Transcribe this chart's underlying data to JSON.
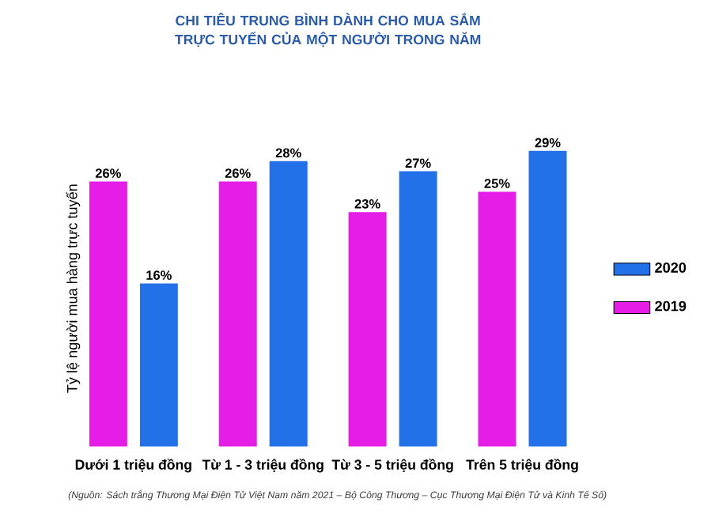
{
  "chart_data": {
    "type": "bar",
    "title": "CHI TIÊU TRUNG BÌNH DÀNH CHO MUA SẮM TRỰC TUYẾN CỦA MỘT NGƯỜI TRONG NĂM",
    "ylabel": "Tỷ lệ người mua hàng trực tuyến",
    "categories": [
      "Dưới 1 triệu đồng",
      "Từ 1 - 3 triệu đồng",
      "Từ 3 - 5 triệu đồng",
      "Trên 5 triệu đồng"
    ],
    "series": [
      {
        "name": "2019",
        "color": "#e61de6",
        "values": [
          26,
          26,
          23,
          25
        ],
        "value_labels": [
          "26%",
          "26%",
          "23%",
          "25%"
        ]
      },
      {
        "name": "2020",
        "color": "#2271e8",
        "values": [
          16,
          28,
          27,
          29
        ],
        "value_labels": [
          "16%",
          "28%",
          "27%",
          "29%"
        ]
      }
    ],
    "legend": "right",
    "annotations": [
      "(Nguồn: Sách trắng Thương Mại Điện Tử Việt Nam năm 2021 – Bộ Công Thương – Cục Thương Mại Điện Tử và Kinh Tế Số)"
    ]
  }
}
